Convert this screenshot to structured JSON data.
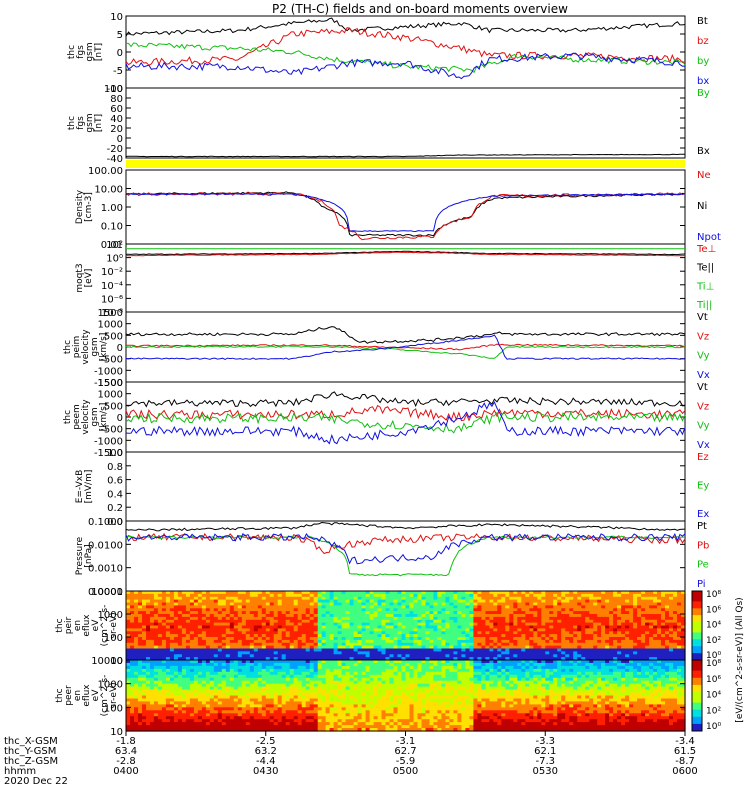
{
  "title": "P2 (TH-C) fields and on-board moments overview",
  "colors": {
    "black": "#000000",
    "red": "#e01010",
    "green": "#10c010",
    "blue": "#1010e0",
    "yellow": "#ffff00"
  },
  "chart_data": [
    {
      "type": "line",
      "id": "fgs",
      "ylabel": [
        "thc",
        "fgs",
        "gsm",
        "[nT]"
      ],
      "ylim": [
        -10,
        10
      ],
      "ticks": [
        "10",
        "5",
        "0",
        "-5",
        "-10"
      ],
      "legend": [
        {
          "label": "Bt",
          "color": "black"
        },
        {
          "label": "bz",
          "color": "red"
        },
        {
          "label": "by",
          "color": "green"
        },
        {
          "label": "bx",
          "color": "blue"
        }
      ]
    },
    {
      "type": "line",
      "id": "fgs_hi",
      "ylabel": [
        "thc",
        "fgs",
        "gsm",
        "[nT]"
      ],
      "ylim": [
        -40,
        100
      ],
      "ticks": [
        "100",
        "80",
        "60",
        "40",
        "20",
        "0",
        "-20",
        "-40"
      ],
      "legend": [
        {
          "label": "By",
          "color": "green"
        },
        {
          "label": "Bx",
          "color": "black"
        }
      ]
    },
    {
      "type": "line",
      "id": "density",
      "ylabel": [
        "Density",
        "[cm-3]"
      ],
      "ylim": [
        0.01,
        100
      ],
      "ticks": [
        "100.00",
        "10.00",
        "1.00",
        "0.10",
        "0.01"
      ],
      "legend": [
        {
          "label": "Ne",
          "color": "red"
        },
        {
          "label": "Ni",
          "color": "black"
        },
        {
          "label": "Npot",
          "color": "blue"
        }
      ]
    },
    {
      "type": "line",
      "id": "temp",
      "ylabel": [
        "moqt3",
        "[eV]"
      ],
      "ylim": [
        1e-08,
        100
      ],
      "ticks": [
        "10²",
        "10⁰",
        "10⁻²",
        "10⁻⁴",
        "10⁻⁶",
        "10⁻⁸"
      ],
      "legend": [
        {
          "label": "Te⊥",
          "color": "red"
        },
        {
          "label": "Te||",
          "color": "black"
        },
        {
          "label": "Ti⊥",
          "color": "green"
        },
        {
          "label": "Ti||",
          "color": "green"
        }
      ]
    },
    {
      "type": "line",
      "id": "peim",
      "ylabel": [
        "thc",
        "peim",
        "velocity",
        "gsm",
        "[km/s]"
      ],
      "ylim": [
        -1500,
        1500
      ],
      "ticks": [
        "1500",
        "1000",
        "500",
        "0",
        "-500",
        "-1000",
        "-1500"
      ],
      "legend": [
        {
          "label": "Vt",
          "color": "black"
        },
        {
          "label": "Vz",
          "color": "red"
        },
        {
          "label": "Vy",
          "color": "green"
        },
        {
          "label": "Vx",
          "color": "blue"
        }
      ]
    },
    {
      "type": "line",
      "id": "peem",
      "ylabel": [
        "thc",
        "peem",
        "velocity",
        "gsm",
        "[km/s]"
      ],
      "ylim": [
        -1500,
        1500
      ],
      "ticks": [
        "1500",
        "1000",
        "500",
        "0",
        "-500",
        "-1000",
        "-1500"
      ],
      "legend": [
        {
          "label": "Vt",
          "color": "black"
        },
        {
          "label": "Vz",
          "color": "red"
        },
        {
          "label": "Vy",
          "color": "green"
        },
        {
          "label": "Vx",
          "color": "blue"
        }
      ]
    },
    {
      "type": "line",
      "id": "efield",
      "ylabel": [
        "E=-VxB",
        "[mV/m]"
      ],
      "ylim": [
        0,
        1
      ],
      "ticks": [
        "1.0",
        "0.8",
        "0.6",
        "0.4",
        "0.2",
        "0.0"
      ],
      "legend": [
        {
          "label": "Ez",
          "color": "red"
        },
        {
          "label": "Ey",
          "color": "green"
        },
        {
          "label": "Ex",
          "color": "blue"
        }
      ]
    },
    {
      "type": "line",
      "id": "pressure",
      "ylabel": [
        "Pressure",
        "[nPa]"
      ],
      "ylim": [
        0.0001,
        0.1
      ],
      "ticks": [
        "0.1000",
        "0.0100",
        "0.0010",
        "0.0001"
      ],
      "legend": [
        {
          "label": "Pt",
          "color": "black"
        },
        {
          "label": "Pb",
          "color": "red"
        },
        {
          "label": "Pe",
          "color": "green"
        },
        {
          "label": "Pi",
          "color": "blue"
        }
      ]
    },
    {
      "type": "heatmap",
      "id": "peir",
      "ylabel": [
        "thc",
        "peir",
        "en",
        "eflux",
        "eV",
        "(cm^2-s-",
        "sr-eV)"
      ],
      "ylim": [
        10,
        10000
      ],
      "ticks": [
        "10000",
        "1000",
        "100",
        "10"
      ]
    },
    {
      "type": "heatmap",
      "id": "peer",
      "ylabel": [
        "thc",
        "peer",
        "en",
        "eflux",
        "eV",
        "(cm^2-s-",
        "sr-eV)"
      ],
      "ylim": [
        10,
        10000
      ],
      "ticks": [
        "10000",
        "1000",
        "100",
        "10"
      ]
    }
  ],
  "colorbar": {
    "ticks": [
      "10⁸",
      "10⁶",
      "10⁴",
      "10²",
      "10⁰"
    ],
    "label": "[eV/(cm^2-s-sr-eV)] (All Qs)"
  },
  "xaxis": {
    "row_labels": [
      "thc_X-GSM",
      "thc_Y-GSM",
      "thc_Z-GSM",
      "hhmm",
      "2020 Dec 22"
    ],
    "ticks": [
      {
        "x": "-1.8",
        "y": "63.4",
        "z": "-2.8",
        "t": "0400"
      },
      {
        "x": "-2.5",
        "y": "63.2",
        "z": "-4.4",
        "t": "0430"
      },
      {
        "x": "-3.1",
        "y": "62.7",
        "z": "-5.9",
        "t": "0500"
      },
      {
        "x": "-3.3",
        "y": "62.1",
        "z": "-7.3",
        "t": "0530"
      },
      {
        "x": "-3.4",
        "y": "61.5",
        "z": "-8.7",
        "t": "0600"
      }
    ]
  }
}
